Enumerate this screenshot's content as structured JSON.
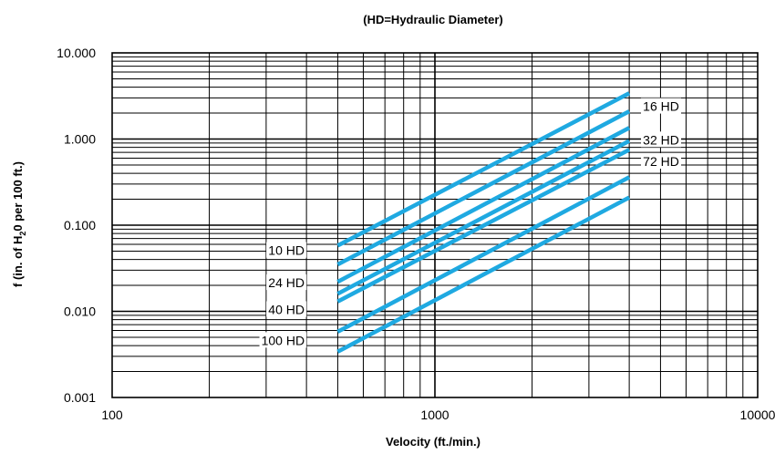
{
  "chart_data": {
    "type": "line",
    "title": "(HD=Hydraulic Diameter)",
    "xlabel": "Velocity (ft./min.)",
    "ylabel_parts": {
      "pre": "f (in. of H",
      "sub": "2",
      "post": "0 per 100 ft.)"
    },
    "x_scale": "log",
    "y_scale": "log",
    "xlim": [
      100,
      10000
    ],
    "ylim": [
      0.001,
      10
    ],
    "grid": true,
    "x_ticks": [
      {
        "value": 100,
        "label": "100"
      },
      {
        "value": 1000,
        "label": "1000"
      },
      {
        "value": 10000,
        "label": "10000"
      }
    ],
    "y_ticks": [
      {
        "value": 10,
        "label": "10.000"
      },
      {
        "value": 1,
        "label": "1.000"
      },
      {
        "value": 0.1,
        "label": "0.100"
      },
      {
        "value": 0.01,
        "label": "0.010"
      },
      {
        "value": 0.001,
        "label": "0.001"
      }
    ],
    "series": [
      {
        "x": [
          500,
          4000
        ],
        "y": [
          0.058,
          3.4
        ]
      },
      {
        "x": [
          500,
          4000
        ],
        "y": [
          0.035,
          2.1
        ]
      },
      {
        "x": [
          500,
          4000
        ],
        "y": [
          0.022,
          1.35
        ]
      },
      {
        "x": [
          500,
          4000
        ],
        "y": [
          0.016,
          0.95
        ]
      },
      {
        "x": [
          500,
          4000
        ],
        "y": [
          0.013,
          0.75
        ]
      },
      {
        "x": [
          500,
          4000
        ],
        "y": [
          0.0058,
          0.36
        ]
      },
      {
        "x": [
          500,
          4000
        ],
        "y": [
          0.0034,
          0.21
        ]
      }
    ],
    "annotations": [
      {
        "text": "10 HD",
        "x": 400,
        "y": 0.051,
        "side": "left"
      },
      {
        "text": "24 HD",
        "x": 400,
        "y": 0.0215,
        "side": "left"
      },
      {
        "text": "40 HD",
        "x": 400,
        "y": 0.0105,
        "side": "left"
      },
      {
        "text": "100 HD",
        "x": 400,
        "y": 0.0046,
        "side": "left"
      },
      {
        "text": "16 HD",
        "x": 4350,
        "y": 2.4,
        "side": "right"
      },
      {
        "text": "32 HD",
        "x": 4350,
        "y": 0.98,
        "side": "right"
      },
      {
        "text": "72 HD",
        "x": 4350,
        "y": 0.55,
        "side": "right"
      }
    ],
    "line_color": "#1fa9e1",
    "grid_color": "#000000"
  }
}
